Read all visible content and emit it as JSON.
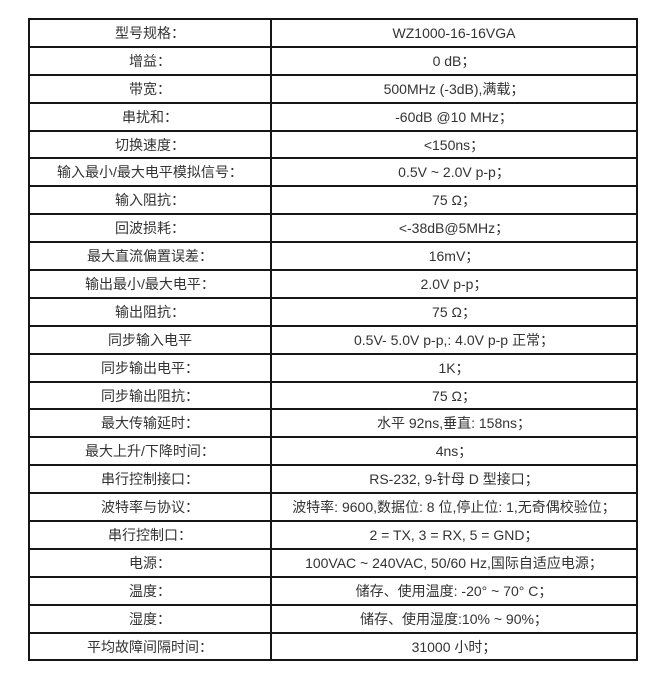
{
  "colors": {
    "page_background": "#ffffff",
    "table_border": "#161616",
    "text": "#333333",
    "cell_background": "#ffffff"
  },
  "table": {
    "rows": [
      {
        "label": "型号规格：",
        "value": "WZ1000-16-16VGA"
      },
      {
        "label": "增益：",
        "value": "0 dB；"
      },
      {
        "label": "带宽：",
        "value": "500MHz (-3dB),满载；"
      },
      {
        "label": "串扰和：",
        "value": "-60dB @10 MHz；"
      },
      {
        "label": "切换速度：",
        "value": "<150ns；"
      },
      {
        "label": "输入最小/最大电平模拟信号：",
        "value": "0.5V ~ 2.0V p-p；"
      },
      {
        "label": "输入阻抗：",
        "value": "75 Ω；"
      },
      {
        "label": "回波损耗：",
        "value": "<-38dB@5MHz；"
      },
      {
        "label": "最大直流偏置误差：",
        "value": "16mV；"
      },
      {
        "label": "输出最小/最大电平：",
        "value": "2.0V p-p；"
      },
      {
        "label": "输出阻抗：",
        "value": "75 Ω；"
      },
      {
        "label": "同步输入电平",
        "value": "0.5V- 5.0V p-p,: 4.0V p-p 正常；"
      },
      {
        "label": "同步输出电平：",
        "value": "1K；"
      },
      {
        "label": "同步输出阻抗：",
        "value": "75 Ω；"
      },
      {
        "label": "最大传输延时：",
        "value": "水平 92ns,垂直: 158ns；"
      },
      {
        "label": "最大上升/下降时间：",
        "value": "4ns；"
      },
      {
        "label": "串行控制接口：",
        "value": "RS-232, 9-针母 D 型接口；"
      },
      {
        "label": "波特率与协议：",
        "value": "波特率: 9600,数据位: 8 位,停止位: 1,无奇偶校验位；"
      },
      {
        "label": "串行控制口：",
        "value": "2 = TX, 3 = RX, 5 = GND；"
      },
      {
        "label": "电源：",
        "value": "100VAC ~ 240VAC, 50/60 Hz,国际自适应电源；"
      },
      {
        "label": "温度：",
        "value": "储存、使用温度: -20° ~ 70° C；"
      },
      {
        "label": "湿度：",
        "value": "储存、使用湿度:10% ~ 90%；"
      },
      {
        "label": "平均故障间隔时间：",
        "value": "31000 小时；"
      }
    ]
  }
}
